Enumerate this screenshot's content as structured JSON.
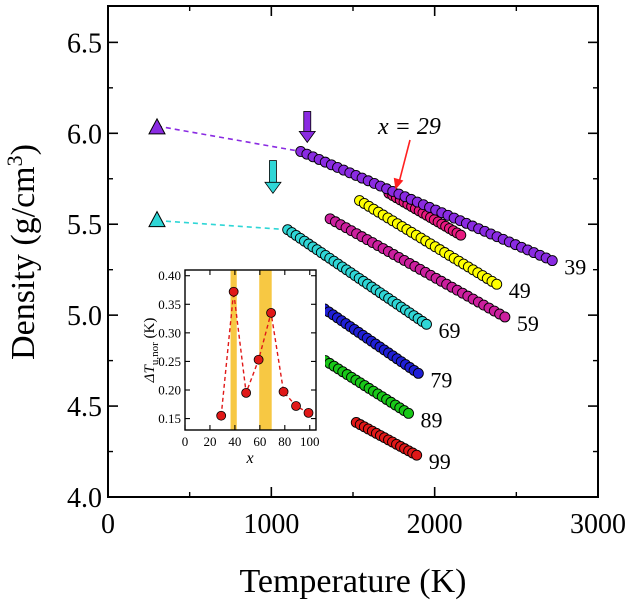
{
  "chart_data": {
    "type": "scatter",
    "xlabel": "Temperature (K)",
    "ylabel": "Density (g/cm",
    "ylabel_sup": "3",
    "ylabel_close": ")",
    "xlim": [
      0,
      3000
    ],
    "ylim": [
      4.0,
      6.7
    ],
    "x_ticks": [
      {
        "value": 0,
        "label": "0"
      },
      {
        "value": 1000,
        "label": "1000"
      },
      {
        "value": 2000,
        "label": "2000"
      },
      {
        "value": 3000,
        "label": "3000"
      }
    ],
    "y_ticks": [
      {
        "value": 4.0,
        "label": "4.0"
      },
      {
        "value": 4.5,
        "label": "4.5"
      },
      {
        "value": 5.0,
        "label": "5.0"
      },
      {
        "value": 5.5,
        "label": "5.5"
      },
      {
        "value": 6.0,
        "label": "6.0"
      },
      {
        "value": 6.5,
        "label": "6.5"
      }
    ],
    "series": [
      {
        "name": "x = 29",
        "label": "",
        "color": "#e8197f",
        "x": [
          1720,
          2160
        ],
        "y": [
          5.67,
          5.44
        ],
        "n": 20
      },
      {
        "name": "x = 39",
        "label": "39",
        "color": "#8a2be2",
        "x": [
          1180,
          2720
        ],
        "y": [
          5.9,
          5.3
        ],
        "n": 42
      },
      {
        "name": "x = 49",
        "label": "49",
        "color": "#ffff00",
        "x": [
          1540,
          2380
        ],
        "y": [
          5.63,
          5.17
        ],
        "n": 30
      },
      {
        "name": "x = 59",
        "label": "59",
        "color": "#cc1f9e",
        "x": [
          1360,
          2430
        ],
        "y": [
          5.53,
          4.99
        ],
        "n": 34
      },
      {
        "name": "x = 69",
        "label": "69",
        "color": "#2fd6d6",
        "x": [
          1100,
          1950
        ],
        "y": [
          5.47,
          4.95
        ],
        "n": 34
      },
      {
        "name": "x = 79",
        "label": "79",
        "color": "#1f1fd6",
        "x": [
          1300,
          1900
        ],
        "y": [
          5.05,
          4.68
        ],
        "n": 24
      },
      {
        "name": "x = 89",
        "label": "89",
        "color": "#18c818",
        "x": [
          1330,
          1840
        ],
        "y": [
          4.75,
          4.46
        ],
        "n": 20
      },
      {
        "name": "x = 99",
        "label": "99",
        "color": "#e01818",
        "x": [
          1520,
          1890
        ],
        "y": [
          4.41,
          4.23
        ],
        "n": 16
      }
    ],
    "extrapolations": [
      {
        "name": "violet-extrapolation",
        "color": "#8a2be2",
        "marker": {
          "x": 300,
          "y": 6.03
        },
        "x": [
          300,
          1180
        ],
        "y": [
          6.04,
          5.9
        ]
      },
      {
        "name": "cyan-extrapolation",
        "color": "#2fd6d6",
        "marker": {
          "x": 300,
          "y": 5.52
        },
        "x": [
          300,
          1100
        ],
        "y": [
          5.52,
          5.47
        ]
      }
    ],
    "arrows": [
      {
        "name": "violet-arrow",
        "color": "#8a2be2",
        "x": 1220,
        "y_top": 6.12,
        "y_tip": 5.95
      },
      {
        "name": "cyan-arrow",
        "color": "#2fd6d6",
        "x": 1010,
        "y_top": 5.85,
        "y_tip": 5.67
      }
    ],
    "annotation": {
      "text": "x = 29",
      "tip_x": 1760,
      "tip_y": 5.69
    },
    "inset": {
      "type": "line",
      "xlabel": "x",
      "ylabel": "ΔT",
      "ylabel_sub": "u,nor",
      "ylabel_unit": " (K)",
      "xlim": [
        0,
        105
      ],
      "ylim": [
        0.13,
        0.41
      ],
      "x_ticks": [
        "0",
        "20",
        "40",
        "60",
        "80",
        "100"
      ],
      "x_tick_values": [
        0,
        20,
        40,
        60,
        80,
        100
      ],
      "y_ticks": [
        "0.15",
        "0.20",
        "0.25",
        "0.30",
        "0.35",
        "0.40"
      ],
      "y_tick_values": [
        0.15,
        0.2,
        0.25,
        0.3,
        0.35,
        0.4
      ],
      "x": [
        29,
        39,
        49,
        59,
        69,
        79,
        89,
        99
      ],
      "y": [
        0.155,
        0.372,
        0.195,
        0.253,
        0.335,
        0.197,
        0.172,
        0.16
      ],
      "marker_color": "#e01818",
      "line_color": "#e01818",
      "highlight_color": "#f7c843",
      "highlights": [
        [
          36.5,
          41.5
        ],
        [
          59.5,
          69.5
        ]
      ]
    }
  }
}
